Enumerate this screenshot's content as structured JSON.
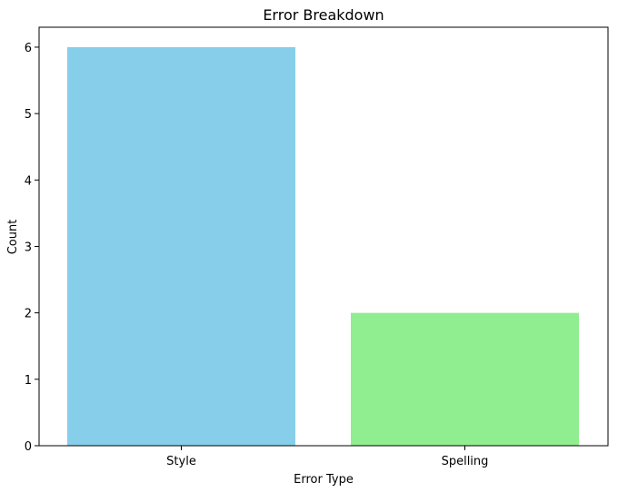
{
  "chart_data": {
    "type": "bar",
    "title": "Error Breakdown",
    "xlabel": "Error Type",
    "ylabel": "Count",
    "categories": [
      "Style",
      "Spelling"
    ],
    "values": [
      6,
      2
    ],
    "colors": [
      "#87CEEB",
      "#90EE90"
    ],
    "ylim": [
      0,
      6.3
    ],
    "yticks": [
      0,
      1,
      2,
      3,
      4,
      5,
      6
    ],
    "grid": false
  }
}
